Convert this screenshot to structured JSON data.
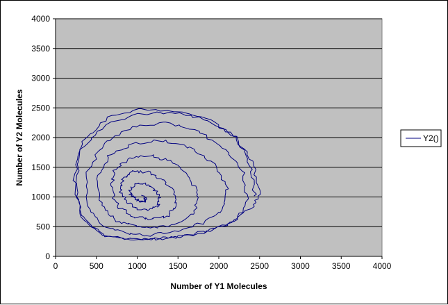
{
  "chart_data": {
    "type": "line",
    "title": "",
    "xlabel": "Number of Y1 Molecules",
    "ylabel": "Number of Y2 Molecules",
    "xlim": [
      0,
      4000
    ],
    "ylim": [
      0,
      4000
    ],
    "x_ticks": [
      "0",
      "500",
      "1000",
      "1500",
      "2000",
      "2500",
      "3000",
      "3500",
      "4000"
    ],
    "y_ticks": [
      "0",
      "500",
      "1000",
      "1500",
      "2000",
      "2500",
      "3000",
      "3500",
      "4000"
    ],
    "grid": "horizontal major gridlines",
    "plot_background": "#c0c0c0",
    "legend_position": "right",
    "series": [
      {
        "name": "Y2()",
        "color": "#000080",
        "shape": "noisy predator-prey oscillation spiralling between an outer orbit and the centre near (1000, 1000)",
        "x": [
          2450,
          2380,
          2200,
          1900,
          1500,
          1050,
          650,
          330,
          230,
          300,
          550,
          900,
          1200,
          1500,
          1850,
          2150,
          2400,
          2500,
          2420,
          2200,
          1850,
          1450,
          1000,
          600,
          310,
          250,
          330,
          600,
          980,
          1250,
          1550,
          1900,
          2200,
          2350,
          2300,
          2080,
          1750,
          1350,
          950,
          580,
          380,
          400,
          580,
          900,
          1150,
          1450,
          1800,
          2050,
          2100,
          1950,
          1650,
          1300,
          950,
          650,
          520,
          560,
          750,
          1000,
          1250,
          1500,
          1700,
          1750,
          1620,
          1400,
          1150,
          900,
          720,
          680,
          780,
          980,
          1180,
          1380,
          1480,
          1450,
          1300,
          1120,
          950,
          830,
          800,
          870,
          1000,
          1150,
          1260,
          1280,
          1200,
          1080,
          970,
          910,
          930,
          1010,
          1080,
          1100,
          1050
        ],
        "y": [
          1000,
          1550,
          2000,
          2300,
          2450,
          2480,
          2350,
          1950,
          1300,
          700,
          380,
          290,
          300,
          330,
          420,
          580,
          800,
          1050,
          1600,
          2000,
          2300,
          2420,
          2400,
          2200,
          1800,
          1100,
          600,
          350,
          280,
          290,
          330,
          420,
          600,
          900,
          1400,
          1800,
          2100,
          2250,
          2180,
          1900,
          1400,
          850,
          520,
          380,
          360,
          420,
          560,
          780,
          1150,
          1550,
          1830,
          1950,
          1900,
          1700,
          1300,
          850,
          600,
          500,
          480,
          550,
          750,
          1050,
          1380,
          1600,
          1700,
          1640,
          1430,
          1100,
          820,
          660,
          620,
          680,
          860,
          1080,
          1300,
          1420,
          1430,
          1300,
          1100,
          920,
          800,
          780,
          850,
          1000,
          1150,
          1230,
          1210,
          1120,
          1020,
          940,
          920,
          970,
          1030
        ]
      }
    ]
  }
}
